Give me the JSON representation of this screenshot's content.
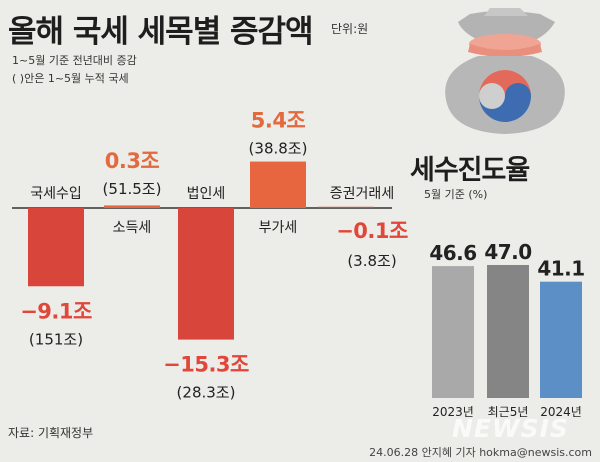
{
  "header": {
    "title": "올해 국세 세목별 증감액",
    "unit": "단위:원",
    "subtitle1": "1~5월 기준 전년대비 증감",
    "subtitle2": "( )안은 1~5월 누적 국세"
  },
  "colors": {
    "negative_bar": "#d8453a",
    "positive_bar": "#e7653f",
    "negative_text": "#e0473a",
    "positive_text": "#e36a3e",
    "rate_bar_2023": "#a9a9a9",
    "rate_bar_5yr": "#858585",
    "rate_bar_2024": "#5d8fc7"
  },
  "chart_data": [
    {
      "type": "bar",
      "title": "올해 국세 세목별 증감액",
      "categories": [
        "국세수입",
        "소득세",
        "법인세",
        "부가세",
        "증권거래세"
      ],
      "values": [
        -9.1,
        0.3,
        -15.3,
        5.4,
        -0.1
      ],
      "value_labels": [
        "−9.1조",
        "0.3조",
        "−15.3조",
        "5.4조",
        "−0.1조"
      ],
      "cumulative": [
        "(151조)",
        "(51.5조)",
        "(28.3조)",
        "(38.8조)",
        "(3.8조)"
      ]
    },
    {
      "type": "bar",
      "title": "세수진도율",
      "subtitle": "5월 기준 (%)",
      "categories": [
        "2023년",
        "최근5년",
        "2024년"
      ],
      "values": [
        46.6,
        47.0,
        41.1
      ],
      "value_labels": [
        "46.6",
        "47.0",
        "41.1"
      ]
    }
  ],
  "footer": {
    "source": "자료: 기획재정부",
    "credit": "24.06.28 안지혜 기자 hokma@newsis.com",
    "watermark": "NEWSIS"
  }
}
